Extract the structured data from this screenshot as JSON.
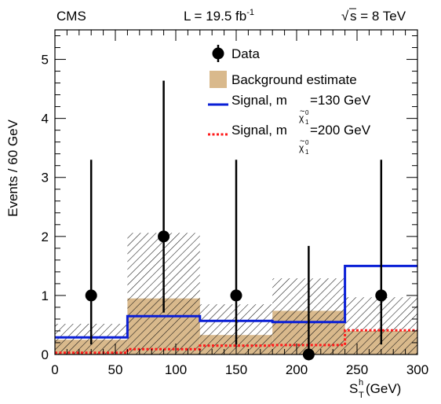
{
  "chart_data": {
    "type": "bar",
    "header": {
      "experiment": "CMS",
      "lumi_prefix": "L = 19.5 fb",
      "lumi_exp": "-1",
      "energy": "s = 8 TeV",
      "sqrt_symbol": "√"
    },
    "xlabel": {
      "main": "S",
      "sup": "h",
      "sub": "T",
      "unit": " (GeV)"
    },
    "ylabel": "Events / 60 GeV",
    "xlim": [
      0,
      300
    ],
    "ylim": [
      0,
      5.5
    ],
    "x_ticks": [
      0,
      50,
      100,
      150,
      200,
      250,
      300
    ],
    "y_ticks": [
      0,
      1,
      2,
      3,
      4,
      5
    ],
    "bin_edges": [
      0,
      60,
      120,
      180,
      240,
      300
    ],
    "background": {
      "values": [
        0.25,
        0.95,
        0.33,
        0.74,
        0.4
      ],
      "unc_low": [
        0.0,
        0.0,
        0.0,
        0.0,
        0.0
      ],
      "unc_high": [
        0.52,
        2.06,
        0.85,
        1.29,
        0.97
      ],
      "color": "#d9b98c"
    },
    "data": {
      "x": [
        30,
        90,
        150,
        210,
        270
      ],
      "y": [
        1,
        2,
        1,
        0,
        1
      ],
      "err_low": [
        0.83,
        1.29,
        0.83,
        0.0,
        0.83
      ],
      "err_high": [
        2.3,
        2.64,
        2.3,
        1.84,
        2.3
      ]
    },
    "signal_130": {
      "values": [
        0.29,
        0.65,
        0.57,
        0.55,
        1.5
      ],
      "color": "#0a1fd6"
    },
    "signal_200": {
      "values": [
        0.03,
        0.09,
        0.15,
        0.16,
        0.41
      ],
      "color": "#ff1a1a"
    },
    "legend": {
      "placement": "top-right",
      "data": "Data",
      "background": "Background estimate",
      "signal1_prefix": "Signal, m",
      "signal1_suffix": "=130 GeV",
      "signal2_prefix": "Signal, m",
      "signal2_suffix": "=200 GeV",
      "chi_symbol": "χ",
      "chi_tilde": "~",
      "chi_zero": "0",
      "chi_one": "1"
    }
  }
}
